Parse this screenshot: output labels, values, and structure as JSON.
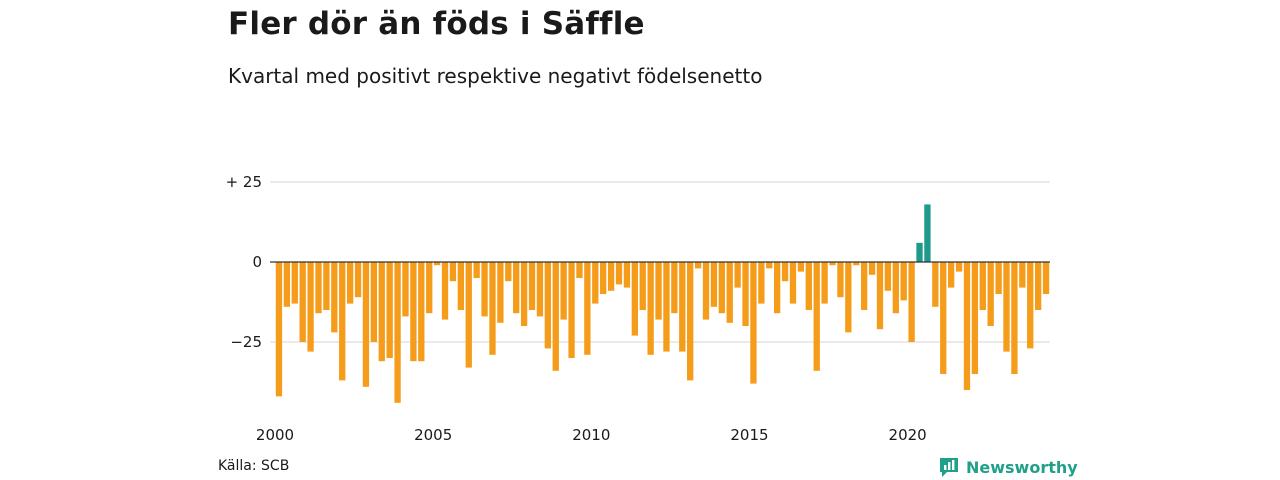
{
  "title": "Fler dör än föds i Säffle",
  "subtitle": "Kvartal med positivt respektive negativt födelsenetto",
  "source": "Källa: SCB",
  "brand": "Newsworthy",
  "colors": {
    "negative": "#f59c1a",
    "positive": "#1d9a8a",
    "grid": "#dddddd",
    "zero_line": "#333333",
    "brand": "#20a08a"
  },
  "chart_data": {
    "type": "bar",
    "ylim": [
      -45,
      25
    ],
    "yticks": [
      25,
      0,
      -25
    ],
    "ytick_labels": [
      "+ 25",
      "0",
      "−25"
    ],
    "xticks": [
      {
        "year": 2000,
        "label": "2000"
      },
      {
        "year": 2005,
        "label": "2005"
      },
      {
        "year": 2010,
        "label": "2010"
      },
      {
        "year": 2015,
        "label": "2015"
      },
      {
        "year": 2020,
        "label": "2020"
      }
    ],
    "start": "2000 Q1",
    "values": [
      -42,
      -14,
      -13,
      -25,
      -28,
      -16,
      -15,
      -22,
      -37,
      -13,
      -11,
      -39,
      -25,
      -31,
      -30,
      -44,
      -17,
      -31,
      -31,
      -16,
      -1,
      -18,
      -6,
      -15,
      -33,
      -5,
      -17,
      -29,
      -19,
      -6,
      -16,
      -20,
      -15,
      -17,
      -27,
      -34,
      -18,
      -30,
      -5,
      -29,
      -13,
      -10,
      -9,
      -7,
      -8,
      -23,
      -15,
      -29,
      -18,
      -28,
      -16,
      -28,
      -37,
      -2,
      -18,
      -14,
      -16,
      -19,
      -8,
      -20,
      -38,
      -13,
      -2,
      -16,
      -6,
      -13,
      -3,
      -15,
      -34,
      -13,
      -1,
      -11,
      -22,
      -1,
      -15,
      -4,
      -21,
      -9,
      -16,
      -12,
      -25,
      6,
      18,
      -14,
      -35,
      -8,
      -3,
      -40,
      -35,
      -15,
      -20,
      -10,
      -28,
      -35,
      -8,
      -27,
      -15,
      -10
    ]
  }
}
